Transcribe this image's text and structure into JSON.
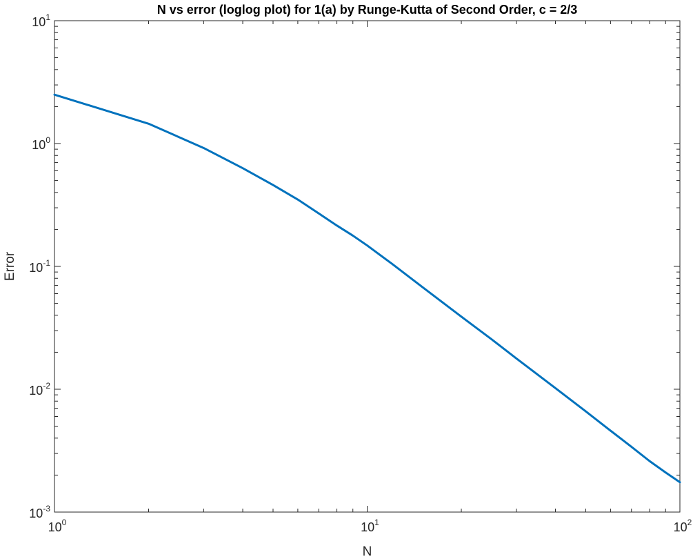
{
  "chart_data": {
    "type": "line",
    "title": "N vs error (loglog plot) for 1(a) by Runge-Kutta of Second Order, c = 2/3",
    "xlabel": "N",
    "ylabel": "Error",
    "xscale": "log",
    "yscale": "log",
    "xlim": [
      1,
      100
    ],
    "ylim": [
      0.001,
      10
    ],
    "grid": false,
    "line_color": "#0072BD",
    "x_ticks": [
      {
        "base": "10",
        "exp": "0",
        "value": 1
      },
      {
        "base": "10",
        "exp": "1",
        "value": 10
      },
      {
        "base": "10",
        "exp": "2",
        "value": 100
      }
    ],
    "y_ticks": [
      {
        "base": "10",
        "exp": "-3",
        "value": 0.001
      },
      {
        "base": "10",
        "exp": "-2",
        "value": 0.01
      },
      {
        "base": "10",
        "exp": "-1",
        "value": 0.1
      },
      {
        "base": "10",
        "exp": "0",
        "value": 1
      },
      {
        "base": "10",
        "exp": "1",
        "value": 10
      }
    ],
    "series": [
      {
        "x": [
          1,
          2,
          3,
          4,
          5,
          6,
          7,
          8,
          9,
          10,
          12,
          15,
          20,
          25,
          30,
          40,
          50,
          60,
          70,
          80,
          90,
          100
        ],
        "y": [
          2.5,
          1.45,
          0.92,
          0.63,
          0.46,
          0.35,
          0.27,
          0.215,
          0.178,
          0.148,
          0.105,
          0.068,
          0.039,
          0.0255,
          0.0178,
          0.0102,
          0.0066,
          0.0046,
          0.0034,
          0.0026,
          0.0021,
          0.00175
        ]
      }
    ]
  }
}
